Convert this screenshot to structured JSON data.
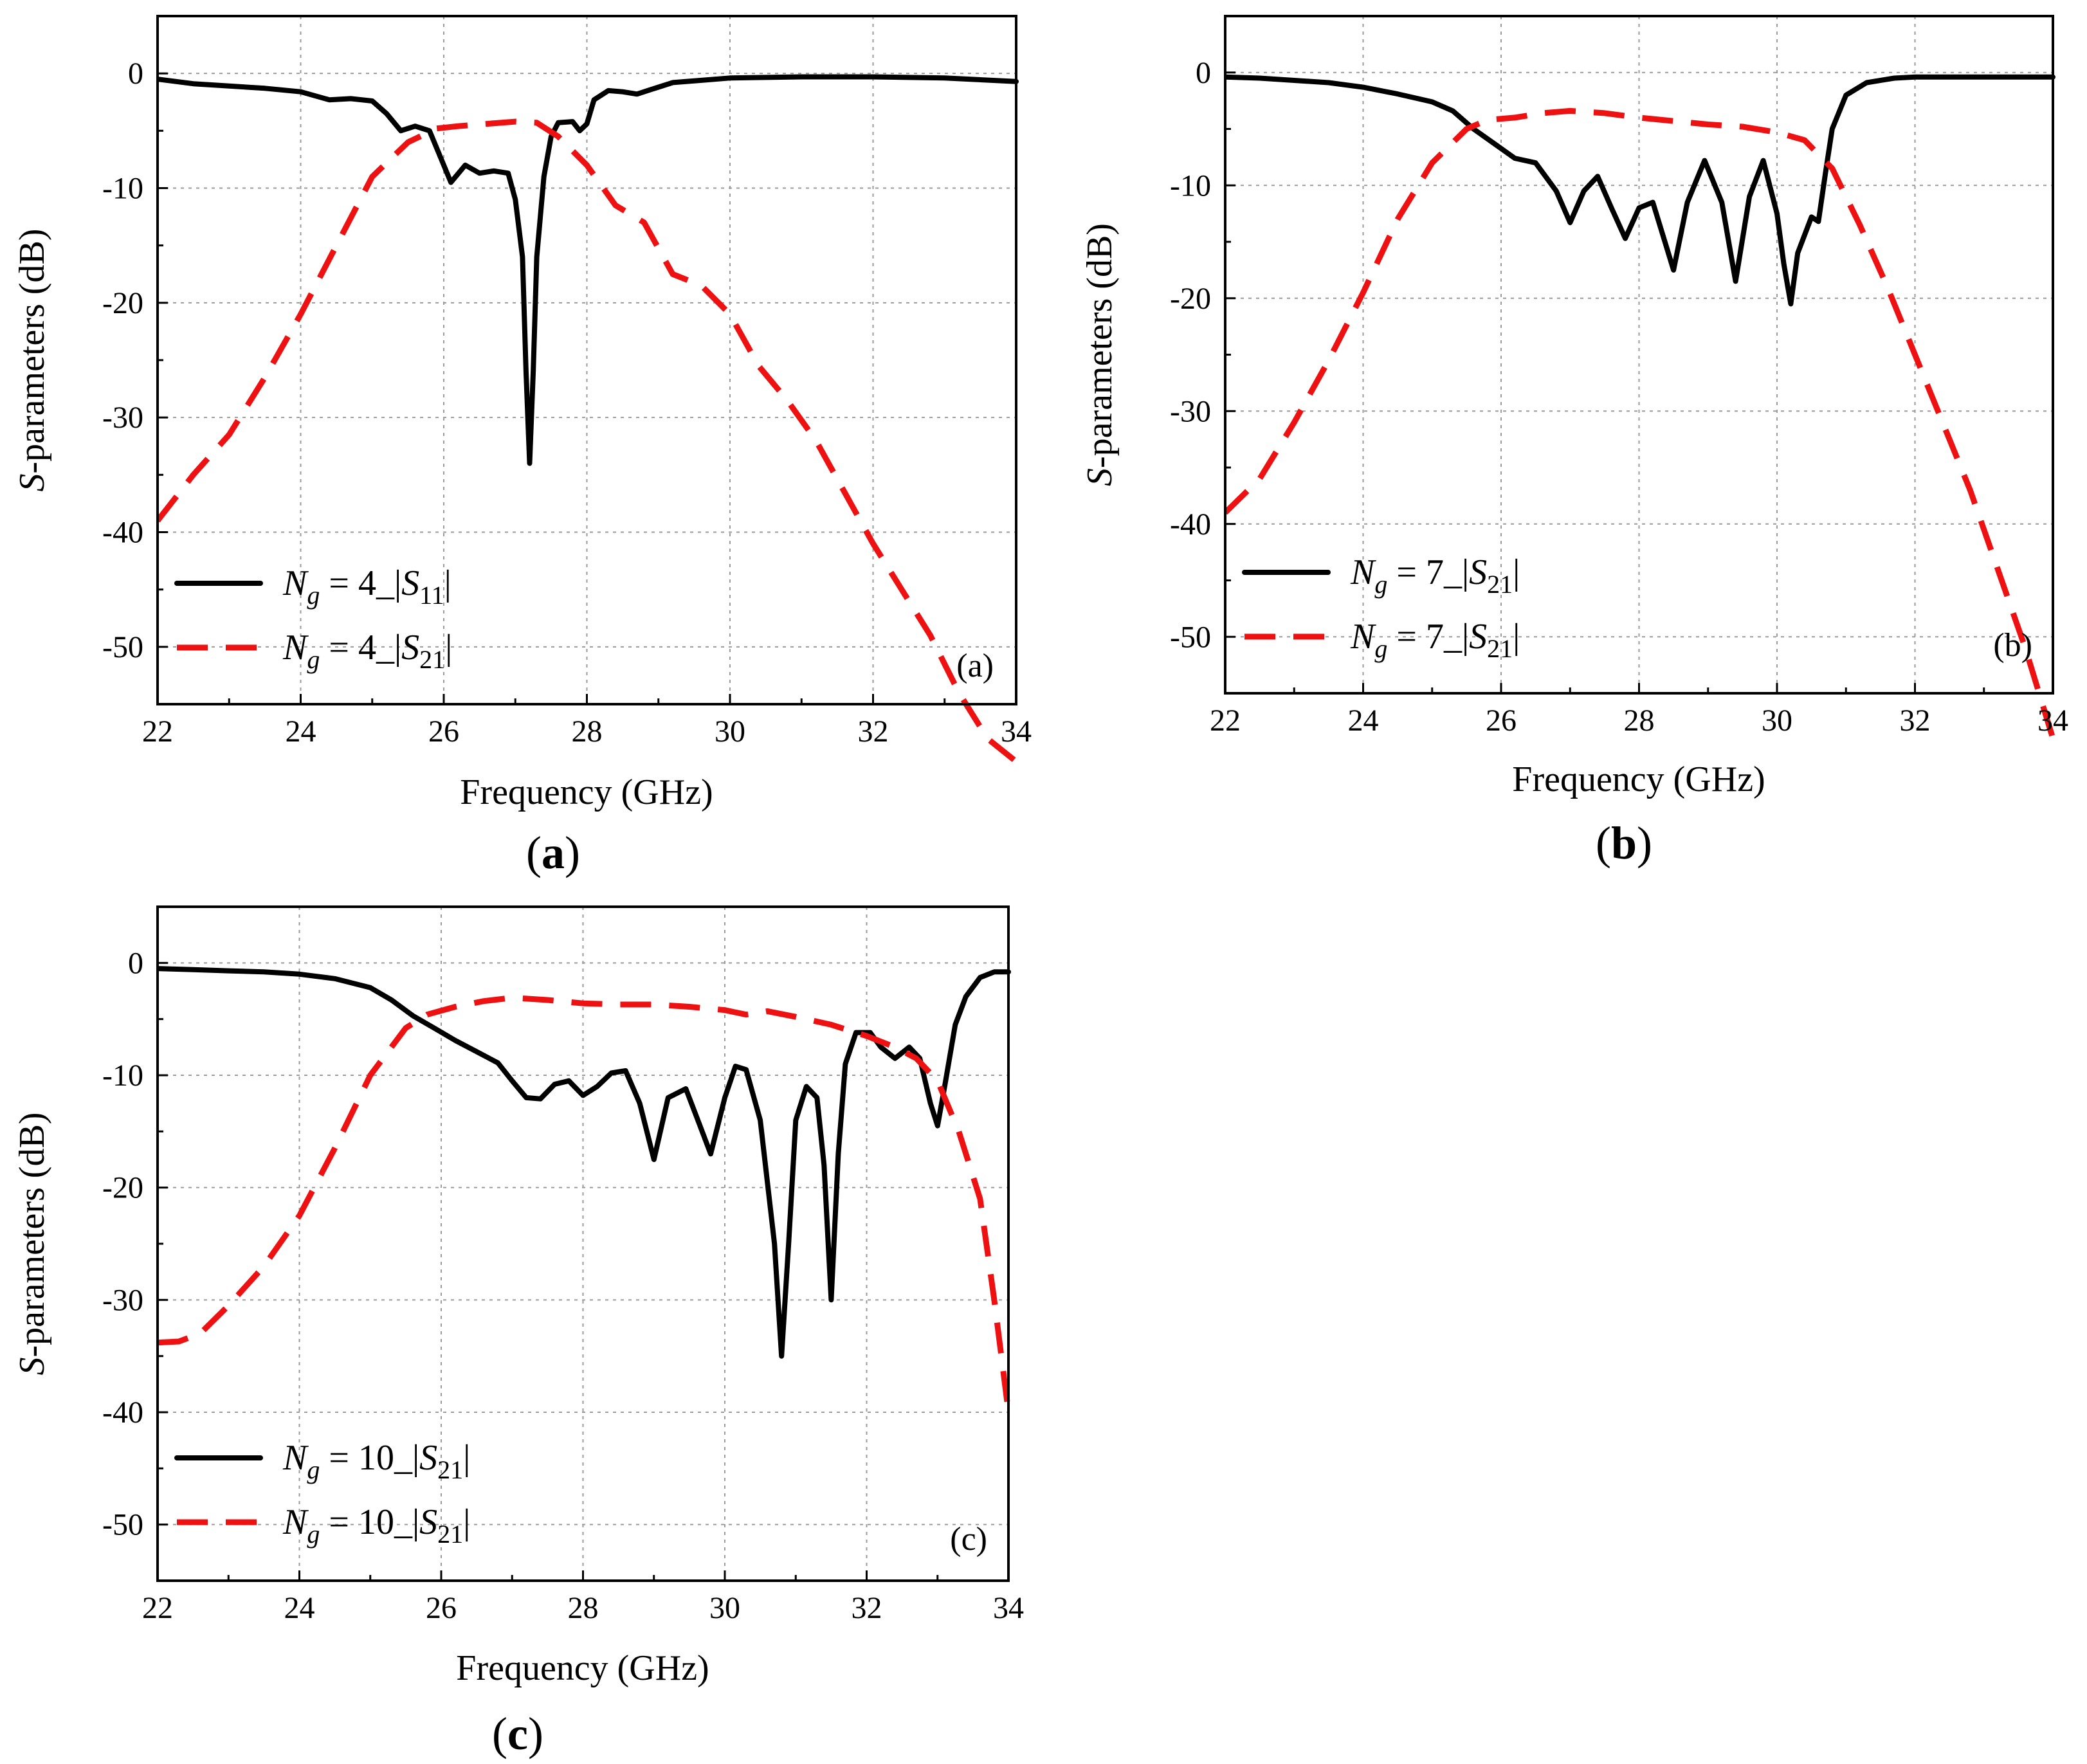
{
  "colors": {
    "s11": "#000000",
    "s21": "#ee1111",
    "grid": "#9a9a9a"
  },
  "chart_data": [
    {
      "type": "line",
      "panel": "a",
      "caption_letter": "a",
      "tag": "(a)",
      "xlabel": "Frequency (GHz)",
      "ylabel_italic": "S",
      "ylabel_rest": "-parameters (dB)",
      "xlim": [
        22,
        34
      ],
      "ylim": [
        -55,
        5
      ],
      "xticks": [
        22,
        24,
        26,
        28,
        30,
        32,
        34
      ],
      "yticks": [
        0,
        -10,
        -20,
        -30,
        -40,
        -50
      ],
      "legend": [
        {
          "Nsub": "g",
          "num": "4",
          "sep": " = ",
          "S": "S",
          "sub": "11",
          "style": "solid"
        },
        {
          "Nsub": "g",
          "num": "4",
          "sep": " = ",
          "S": "S",
          "sub": "21",
          "style": "dashed"
        }
      ],
      "series": [
        {
          "name": "Ng = 4_|S11|",
          "style": "solid",
          "x": [
            22,
            22.5,
            23,
            23.5,
            24,
            24.4,
            24.7,
            25.0,
            25.2,
            25.4,
            25.6,
            25.8,
            26.0,
            26.1,
            26.3,
            26.5,
            26.7,
            26.9,
            27.0,
            27.1,
            27.15,
            27.2,
            27.25,
            27.3,
            27.4,
            27.5,
            27.6,
            27.8,
            27.9,
            28.0,
            28.1,
            28.3,
            28.5,
            28.7,
            28.9,
            29.2,
            29.6,
            30,
            31,
            32,
            33,
            34
          ],
          "y": [
            -0.5,
            -0.9,
            -1.1,
            -1.3,
            -1.6,
            -2.3,
            -2.2,
            -2.4,
            -3.5,
            -5.0,
            -4.6,
            -5.0,
            -8.0,
            -9.5,
            -8.0,
            -8.7,
            -8.5,
            -8.7,
            -11,
            -16,
            -26,
            -34,
            -26,
            -16,
            -9,
            -5.5,
            -4.3,
            -4.2,
            -5.0,
            -4.4,
            -2.3,
            -1.5,
            -1.6,
            -1.8,
            -1.4,
            -0.8,
            -0.6,
            -0.4,
            -0.3,
            -0.3,
            -0.4,
            -0.7
          ]
        },
        {
          "name": "Ng = 4_|S21|",
          "style": "dashed",
          "x": [
            22,
            22.5,
            23,
            23.5,
            24,
            24.5,
            25,
            25.5,
            25.9,
            26.2,
            26.6,
            27.0,
            27.3,
            27.6,
            28.0,
            28.4,
            28.8,
            29.2,
            29.6,
            30.0,
            30.4,
            30.8,
            31.2,
            31.6,
            32.0,
            32.4,
            32.8,
            33.2,
            33.6,
            34.0
          ],
          "y": [
            -39,
            -35,
            -31.5,
            -26.5,
            -21,
            -15,
            -9,
            -6,
            -4.8,
            -4.6,
            -4.4,
            -4.2,
            -4.3,
            -5.5,
            -8,
            -11.5,
            -13,
            -17.5,
            -18.5,
            -21,
            -25.5,
            -28.5,
            -32,
            -36.5,
            -41,
            -45,
            -49,
            -54,
            -58,
            -60
          ]
        }
      ]
    },
    {
      "type": "line",
      "panel": "b",
      "caption_letter": "b",
      "tag": "(b)",
      "xlabel": "Frequency (GHz)",
      "ylabel_italic": "S",
      "ylabel_rest": "-parameters (dB)",
      "xlim": [
        22,
        34
      ],
      "ylim": [
        -55,
        5
      ],
      "xticks": [
        22,
        24,
        26,
        28,
        30,
        32,
        34
      ],
      "yticks": [
        0,
        -10,
        -20,
        -30,
        -40,
        -50
      ],
      "legend": [
        {
          "Nsub": "g",
          "num": "7",
          "sep": " = ",
          "S": "S",
          "sub": "21",
          "style": "solid"
        },
        {
          "Nsub": "g",
          "num": "7",
          "sep": " = ",
          "S": "S",
          "sub": "21",
          "style": "dashed"
        }
      ],
      "series": [
        {
          "name": "Ng = 7_|S21| (solid)",
          "style": "solid",
          "x": [
            22,
            22.5,
            23,
            23.5,
            24,
            24.5,
            25,
            25.3,
            25.6,
            25.9,
            26.2,
            26.5,
            26.8,
            27.0,
            27.2,
            27.4,
            27.6,
            27.8,
            28.0,
            28.2,
            28.4,
            28.5,
            28.7,
            28.95,
            29.2,
            29.4,
            29.6,
            29.8,
            30.0,
            30.1,
            30.2,
            30.3,
            30.5,
            30.6,
            30.7,
            30.8,
            31.0,
            31.3,
            31.7,
            32,
            33,
            34
          ],
          "y": [
            -0.4,
            -0.5,
            -0.7,
            -0.9,
            -1.3,
            -1.9,
            -2.6,
            -3.4,
            -5.0,
            -6.3,
            -7.6,
            -8.0,
            -10.5,
            -13.3,
            -10.5,
            -9.2,
            -12.0,
            -14.7,
            -12.0,
            -11.5,
            -15.5,
            -17.5,
            -11.5,
            -7.8,
            -11.5,
            -18.5,
            -11.0,
            -7.8,
            -12.5,
            -17.0,
            -20.5,
            -16.0,
            -12.8,
            -13.2,
            -9.0,
            -5.0,
            -2.0,
            -0.9,
            -0.5,
            -0.4,
            -0.4,
            -0.4
          ]
        },
        {
          "name": "Ng = 7_|S21| (dashed)",
          "style": "dashed",
          "x": [
            22,
            22.5,
            23,
            23.5,
            24,
            24.5,
            25,
            25.5,
            25.8,
            26.2,
            26.6,
            27.0,
            27.5,
            28.0,
            28.5,
            29.0,
            29.5,
            30.0,
            30.4,
            30.8,
            31.2,
            31.6,
            32.0,
            32.4,
            32.8,
            33.2,
            33.6,
            34.0
          ],
          "y": [
            -39,
            -36,
            -31,
            -25.5,
            -19.5,
            -13,
            -8,
            -5,
            -4.2,
            -4.0,
            -3.6,
            -3.4,
            -3.6,
            -4.0,
            -4.3,
            -4.6,
            -4.8,
            -5.3,
            -6.0,
            -8.5,
            -13.5,
            -19,
            -25,
            -31,
            -37,
            -44,
            -51,
            -59
          ]
        }
      ]
    },
    {
      "type": "line",
      "panel": "c",
      "caption_letter": "c",
      "tag": "(c)",
      "xlabel": "Frequency (GHz)",
      "ylabel_italic": "S",
      "ylabel_rest": "-parameters (dB)",
      "xlim": [
        22,
        34
      ],
      "ylim": [
        -55,
        5
      ],
      "xticks": [
        22,
        24,
        26,
        28,
        30,
        32,
        34
      ],
      "yticks": [
        0,
        -10,
        -20,
        -30,
        -40,
        -50
      ],
      "legend": [
        {
          "Nsub": "g",
          "num": "10",
          "sep": " = ",
          "S": "S",
          "sub": "21",
          "style": "solid"
        },
        {
          "Nsub": "g",
          "num": "10",
          "sep": " = ",
          "S": "S",
          "sub": "21",
          "style": "dashed"
        }
      ],
      "series": [
        {
          "name": "Ng = 10_|S21| (solid)",
          "style": "solid",
          "x": [
            22,
            22.5,
            23,
            23.5,
            24,
            24.5,
            25,
            25.3,
            25.6,
            25.9,
            26.2,
            26.5,
            26.8,
            27.0,
            27.2,
            27.4,
            27.6,
            27.8,
            28.0,
            28.2,
            28.4,
            28.6,
            28.8,
            29.0,
            29.2,
            29.45,
            29.65,
            29.8,
            30.0,
            30.15,
            30.3,
            30.5,
            30.7,
            30.8,
            30.9,
            31.0,
            31.15,
            31.3,
            31.4,
            31.5,
            31.6,
            31.7,
            31.85,
            32.05,
            32.2,
            32.4,
            32.6,
            32.75,
            32.9,
            33.0,
            33.1,
            33.25,
            33.4,
            33.6,
            33.8,
            34
          ],
          "y": [
            -0.5,
            -0.6,
            -0.7,
            -0.8,
            -1.0,
            -1.4,
            -2.2,
            -3.3,
            -4.7,
            -5.8,
            -6.9,
            -7.9,
            -8.9,
            -10.5,
            -12.0,
            -12.1,
            -10.8,
            -10.5,
            -11.8,
            -11.0,
            -9.8,
            -9.6,
            -12.5,
            -17.5,
            -12.0,
            -11.2,
            -14.5,
            -17.0,
            -12.0,
            -9.2,
            -9.5,
            -14.0,
            -25.0,
            -35.0,
            -25.0,
            -14.0,
            -11.0,
            -12.0,
            -18.0,
            -30.0,
            -17.0,
            -9.0,
            -6.2,
            -6.2,
            -7.5,
            -8.5,
            -7.5,
            -8.5,
            -12.5,
            -14.5,
            -11.0,
            -5.5,
            -3.0,
            -1.3,
            -0.8,
            -0.8
          ]
        },
        {
          "name": "Ng = 10_|S21| (dashed)",
          "style": "dashed",
          "x": [
            22,
            22.3,
            22.6,
            23,
            23.5,
            24,
            24.5,
            25,
            25.5,
            25.8,
            26.2,
            26.6,
            27.0,
            27.5,
            28.0,
            28.5,
            29.0,
            29.5,
            30.0,
            30.3,
            30.6,
            31.0,
            31.5,
            32.0,
            32.4,
            32.7,
            33.0,
            33.3,
            33.6,
            33.8,
            34.0
          ],
          "y": [
            -33.8,
            -33.7,
            -33.0,
            -30.5,
            -27,
            -22.5,
            -16.5,
            -10,
            -5.8,
            -4.6,
            -3.9,
            -3.4,
            -3.1,
            -3.3,
            -3.6,
            -3.7,
            -3.7,
            -3.9,
            -4.2,
            -4.6,
            -4.3,
            -4.8,
            -5.5,
            -6.5,
            -7.5,
            -8.5,
            -10.5,
            -15,
            -21,
            -30,
            -40
          ]
        }
      ]
    }
  ]
}
